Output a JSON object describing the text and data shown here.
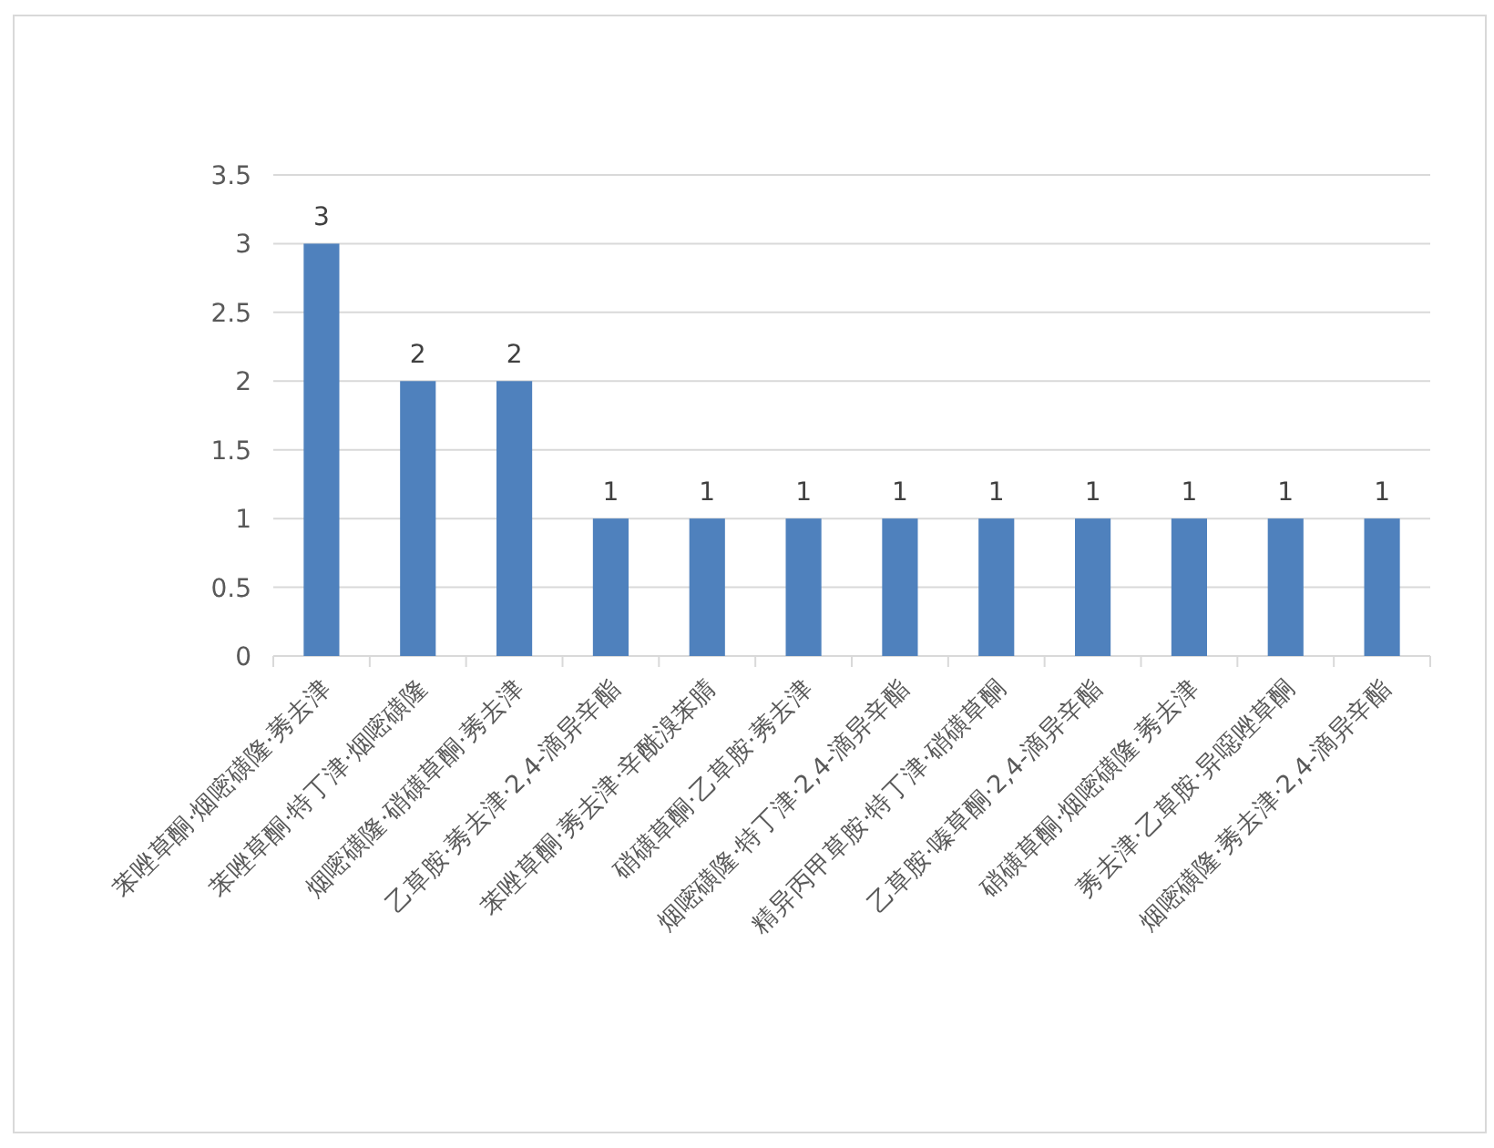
{
  "chart_data": {
    "type": "bar",
    "categories": [
      "苯唑草酮·烟嘧磺隆·莠去津",
      "苯唑草酮·特丁津·烟嘧磺隆",
      "烟嘧磺隆·硝磺草酮·莠去津",
      "乙草胺·莠去津·2,4-滴异辛酯",
      "苯唑草酮·莠去津·辛酰溴苯腈",
      "硝磺草酮·乙草胺·莠去津",
      "烟嘧磺隆·特丁津·2,4-滴异辛酯",
      "精异丙甲草胺·特丁津·硝磺草酮",
      "乙草胺·嗪草酮·2,4-滴异辛酯",
      "硝磺草酮·烟嘧磺隆·莠去津",
      "莠去津·乙草胺·异噁唑草酮",
      "烟嘧磺隆·莠去津·2,4-滴异辛酯"
    ],
    "values": [
      3,
      2,
      2,
      1,
      1,
      1,
      1,
      1,
      1,
      1,
      1,
      1
    ],
    "color": "#4f81bd",
    "ylim": [
      0,
      3.5
    ],
    "yticks": [
      0,
      0.5,
      1,
      1.5,
      2,
      2.5,
      3,
      3.5
    ],
    "grid": "y",
    "data_labels": true
  }
}
